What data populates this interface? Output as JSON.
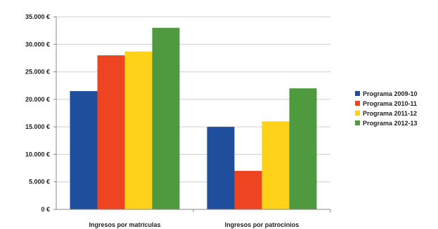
{
  "chart_data": {
    "type": "bar",
    "categories": [
      "Ingresos por matrículas",
      "Ingresos por patrocinios"
    ],
    "series": [
      {
        "name": "Programa 2009-10",
        "color": "#1f4e9c",
        "values": [
          21500,
          15000
        ]
      },
      {
        "name": "Programa 2010-11",
        "color": "#ee4422",
        "values": [
          28000,
          7000
        ]
      },
      {
        "name": "Programa 2011-12",
        "color": "#ffd21a",
        "values": [
          28700,
          16000
        ]
      },
      {
        "name": "Programa 2012-13",
        "color": "#4f9a3e",
        "values": [
          33000,
          22000
        ]
      }
    ],
    "y_ticks": [
      "0 €",
      "5.000 €",
      "10.000 €",
      "15.000 €",
      "20.000 €",
      "25.000 €",
      "30.000 €",
      "35.000 €"
    ],
    "ylim": [
      0,
      35000
    ],
    "grid": true,
    "legend_position": "right",
    "title": "",
    "xlabel": "",
    "ylabel": ""
  }
}
